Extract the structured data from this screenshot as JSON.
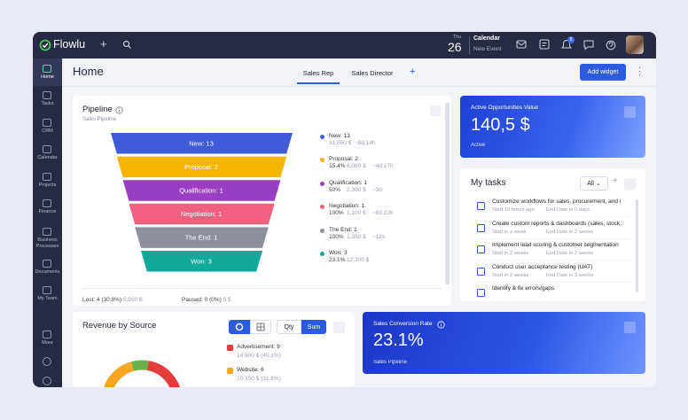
{
  "topbar": {
    "logo": "Flowlu",
    "day": "Thu",
    "date": "26",
    "calendar": "Calendar",
    "new_event": "New Event",
    "badge": "8"
  },
  "sidebar": [
    "Home",
    "Tasks",
    "CRM",
    "Calendar",
    "Projects",
    "Finance",
    "Business Processes",
    "Documents",
    "My Team",
    "More"
  ],
  "header": {
    "title": "Home",
    "tabs": [
      "Sales Rep",
      "Sales Director"
    ],
    "add_tab": "+",
    "button": "Add widget"
  },
  "pipeline": {
    "title": "Pipeline",
    "subtitle": "Sales Pipeline",
    "stages": [
      {
        "label": "New: 13",
        "color": "#3f5bd8",
        "amount": "31,050 $",
        "time": "~8d 14h"
      },
      {
        "label": "Proposal: 2",
        "color": "#f5b400",
        "percent": "15.4%",
        "amount": "6,000 $",
        "time": "~4d 17h"
      },
      {
        "label": "Qualification: 1",
        "color": "#9a3fc2",
        "percent": "50%",
        "amount": "2,300 $",
        "time": "~3d"
      },
      {
        "label": "Negotiation: 1",
        "color": "#f2607f",
        "percent": "100%",
        "amount": "1,100 $",
        "time": "~8d 22h"
      },
      {
        "label": "The End: 1",
        "color": "#8b909c",
        "percent": "100%",
        "amount": "1,350 $",
        "time": "~12s"
      },
      {
        "label": "Won: 3",
        "color": "#12a89a",
        "percent": "23.1%",
        "amount": "12,300 $"
      }
    ],
    "lost": "Lost: 4 (30.8%)",
    "lost_amount": "5,950 $",
    "paused": "Paused: 0 (0%)",
    "paused_amount": "0 $"
  },
  "active_value": {
    "title": "Active Opportunities Value",
    "value": "140,5 $",
    "caption": "Active"
  },
  "tasks": {
    "title": "My tasks",
    "filter": "All",
    "items": [
      {
        "title": "Customize workflows for sales, procurement, and i",
        "start": "Start 10 hours ago",
        "end": "End Date in 5 days"
      },
      {
        "title": "Create custom reports & dashboards (sales, stock,",
        "start": "Start in a week",
        "end": "End Date in 2 weeks"
      },
      {
        "title": "Implement lead scoring & customer segmentation",
        "start": "Start in 2 weeks",
        "end": "End Date in 2 weeks"
      },
      {
        "title": "Conduct user acceptance testing (UAT)",
        "start": "Start in 2 weeks",
        "end": "End Date in 3 weeks"
      },
      {
        "title": "Identify & fix errors/gaps"
      }
    ]
  },
  "revenue": {
    "title": "Revenue by Source",
    "modes": [
      "Qty",
      "Sum"
    ],
    "legend": [
      {
        "label": "Advertisement: 9",
        "detail": "14 800 $ (45.1%)",
        "color": "#e63b3b"
      },
      {
        "label": "Website: 6",
        "detail": "10 350 $ (31.6%)",
        "color": "#f5a623"
      }
    ]
  },
  "conversion": {
    "title": "Sales Conversion Rate",
    "value": "23.1%",
    "caption": "Sales Pipeline"
  }
}
